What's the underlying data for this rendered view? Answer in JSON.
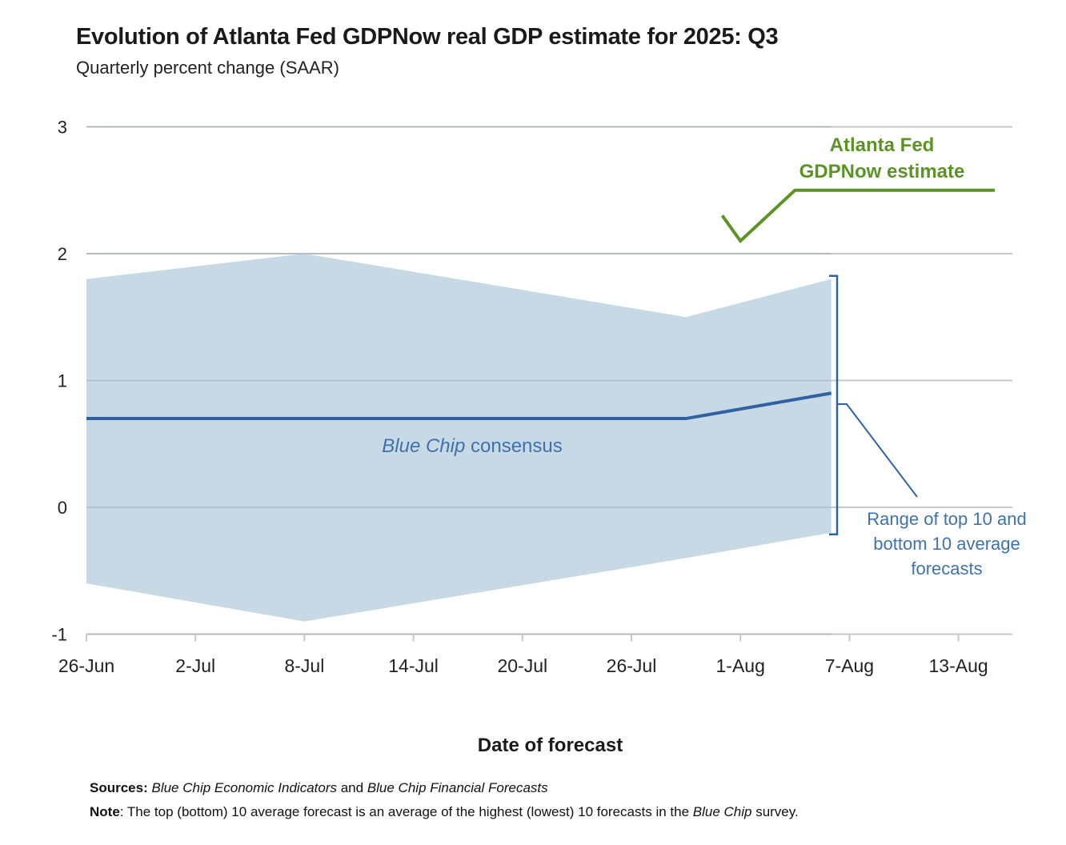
{
  "header": {
    "title": "Evolution of Atlanta Fed GDPNow real GDP estimate for 2025: Q3",
    "subtitle": "Quarterly percent change (SAAR)"
  },
  "footer": {
    "sources_label": "Sources:",
    "sources_italic_1": "Blue Chip Economic Indicators",
    "sources_and": " and ",
    "sources_italic_2": "Blue Chip Financial Forecasts",
    "note_label": "Note",
    "note_text_1": ": The top (bottom) 10 average forecast is an average of the highest (lowest) 10 forecasts in the ",
    "note_italic": "Blue Chip",
    "note_text_2": " survey."
  },
  "colors": {
    "gdpnow": "#5b9424",
    "consensus": "#2e62a3",
    "band": "#c8d9e6",
    "grid": "#c8c8c8",
    "annotation": "#3f72ad"
  },
  "chart_data": {
    "type": "line",
    "title": "Evolution of Atlanta Fed GDPNow real GDP estimate for 2025: Q3",
    "subtitle": "Quarterly percent change (SAAR)",
    "xlabel": "Date of forecast",
    "ylabel": "",
    "ylim": [
      -1,
      3
    ],
    "yticks": [
      -1,
      0,
      1,
      2,
      3
    ],
    "x_start": "26-Jun",
    "x_range_days": [
      0,
      51
    ],
    "xticks": [
      {
        "label": "26-Jun",
        "day": 0
      },
      {
        "label": "2-Jul",
        "day": 6
      },
      {
        "label": "8-Jul",
        "day": 12
      },
      {
        "label": "14-Jul",
        "day": 18
      },
      {
        "label": "20-Jul",
        "day": 24
      },
      {
        "label": "26-Jul",
        "day": 30
      },
      {
        "label": "1-Aug",
        "day": 36
      },
      {
        "label": "7-Aug",
        "day": 42
      },
      {
        "label": "13-Aug",
        "day": 48
      }
    ],
    "grid": true,
    "series": [
      {
        "name": "Range of top 10 and bottom 10 average forecasts",
        "kind": "band",
        "x_days": [
          0,
          12,
          33,
          41
        ],
        "x_dates": [
          "26-Jun",
          "8-Jul",
          "29-Jul",
          "6-Aug"
        ],
        "upper": [
          1.8,
          2.0,
          1.5,
          1.8
        ],
        "lower": [
          -0.6,
          -0.9,
          -0.4,
          -0.2
        ]
      },
      {
        "name": "Blue Chip consensus",
        "kind": "line",
        "x_days": [
          0,
          33,
          41
        ],
        "x_dates": [
          "26-Jun",
          "29-Jul",
          "6-Aug"
        ],
        "values": [
          0.7,
          0.7,
          0.9
        ]
      },
      {
        "name": "Atlanta Fed GDPNow estimate",
        "kind": "line",
        "x_days": [
          35,
          36,
          39,
          50
        ],
        "x_dates": [
          "31-Jul",
          "1-Aug",
          "4-Aug",
          "15-Aug"
        ],
        "values": [
          2.3,
          2.1,
          2.5,
          2.5
        ]
      }
    ],
    "annotations": [
      {
        "text_line1": "Atlanta Fed",
        "text_line2": "GDPNow estimate",
        "series": "Atlanta Fed GDPNow estimate"
      },
      {
        "text_italic": "Blue Chip",
        "text_rest": " consensus",
        "series": "Blue Chip consensus"
      },
      {
        "text_line1": "Range of top 10 and",
        "text_line2": "bottom 10 average",
        "text_line3": "forecasts",
        "series": "Range of top 10 and bottom 10 average forecasts"
      }
    ]
  }
}
